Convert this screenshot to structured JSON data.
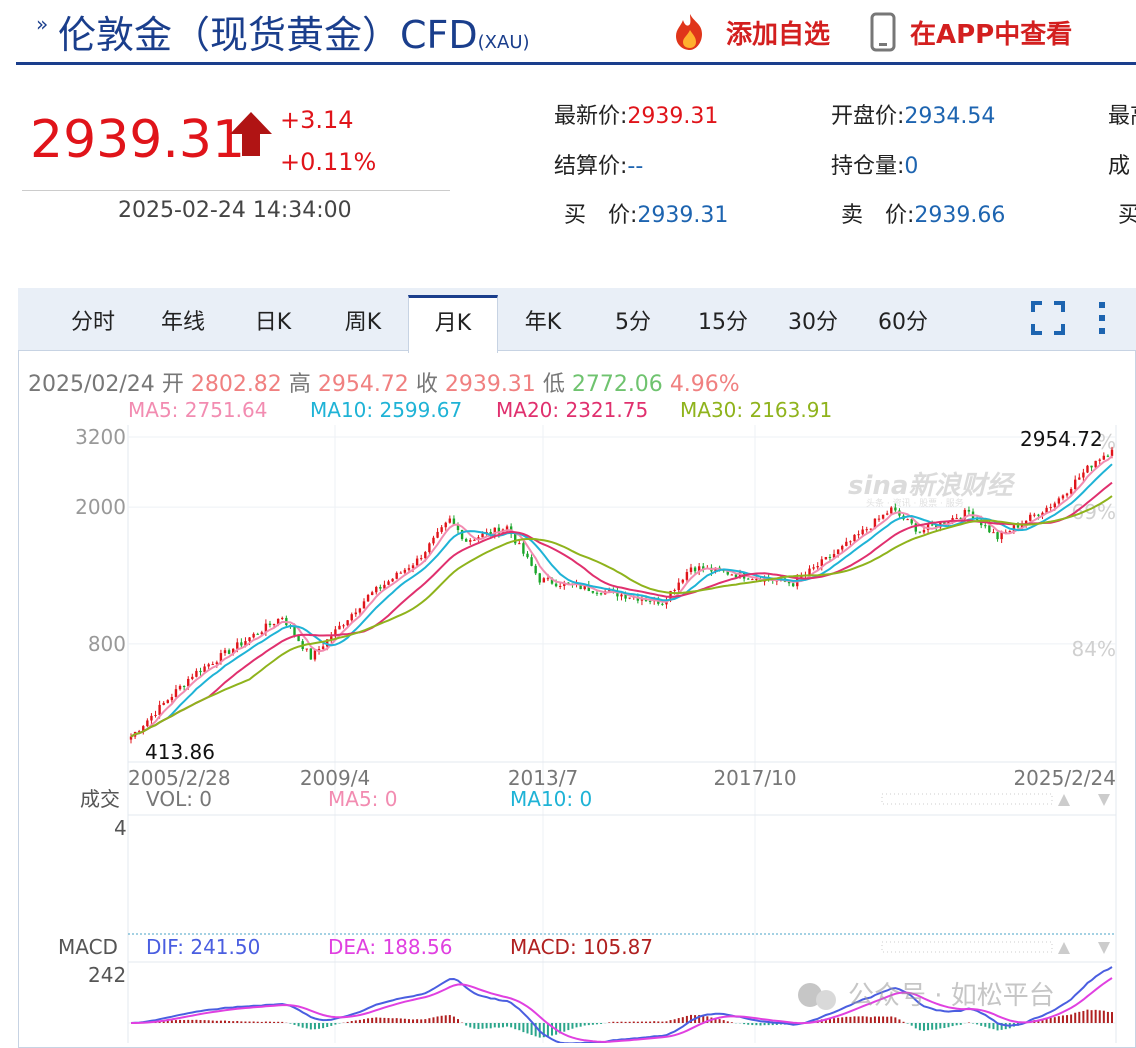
{
  "header": {
    "title": "伦敦金（现货黄金）CFD",
    "title_sub": "(XAU)",
    "add_watch": "添加自选",
    "view_app": "在APP中查看"
  },
  "quote": {
    "price": "2939.31",
    "change": "+3.14",
    "change_pct": "+0.11%",
    "timestamp": "2025-02-24 14:34:00",
    "items": [
      {
        "label": "最新价:",
        "value": "2939.31",
        "up": true
      },
      {
        "label": "开盘价:",
        "value": "2934.54"
      },
      {
        "label": "最高",
        "value": ""
      },
      {
        "label": "结算价:",
        "value": "--"
      },
      {
        "label": "持仓量:",
        "value": "0"
      },
      {
        "label": "成",
        "value": ""
      },
      {
        "label": "买　价:",
        "value": "2939.31"
      },
      {
        "label": "卖　价:",
        "value": "2939.66"
      },
      {
        "label": "买",
        "value": ""
      }
    ]
  },
  "tabs": [
    "分时",
    "年线",
    "日K",
    "周K",
    "月K",
    "年K",
    "5分",
    "15分",
    "30分",
    "60分"
  ],
  "active_tab": 4,
  "kline_info": {
    "date": "2025/02/24",
    "open_label": "开",
    "open": "2802.82",
    "high_label": "高",
    "high": "2954.72",
    "close_label": "收",
    "close": "2939.31",
    "low_label": "低",
    "low": "2772.06",
    "pct": "4.96%"
  },
  "ma_legend": [
    {
      "text": "MA5: 2751.64",
      "color": "#f28cb1"
    },
    {
      "text": "MA10: 2599.67",
      "color": "#1fb3d6"
    },
    {
      "text": "MA20: 2321.75",
      "color": "#e0306e"
    },
    {
      "text": "MA30: 2163.91",
      "color": "#8fb31c"
    }
  ],
  "volume": {
    "label": "成交",
    "vol": "VOL: 0",
    "ma5": "MA5: 0",
    "ma10": "MA10: 0",
    "axis_top": "4"
  },
  "macd": {
    "label": "MACD",
    "dif": "DIF: 241.50",
    "dea": "DEA: 188.56",
    "macd": "MACD: 105.87",
    "axis_top": "242"
  },
  "watermark": {
    "brand": "sina新浪财经",
    "sub": "头条 · 资讯 · 股票 · 服务",
    "wechat": "公众号 · 如松平台"
  },
  "colors": {
    "up": "#e0141a",
    "down": "#1aa62a",
    "ma5": "#f28cb1",
    "ma10": "#1fb3d6",
    "ma20": "#e0306e",
    "ma30": "#8fb31c",
    "dif": "#4a5ee0",
    "dea": "#e040e0"
  },
  "chart_data": {
    "type": "candlestick",
    "title": "伦敦金（现货黄金）CFD 月K",
    "y_ticks": [
      "3200",
      "2000",
      "800"
    ],
    "y_tick_values": [
      3200,
      2000,
      800
    ],
    "y_pct_labels": [
      "%",
      "69%",
      "84%"
    ],
    "x_ticks": [
      "2005/2/28",
      "2009/4",
      "2013/7",
      "2017/10",
      "2025/2/24"
    ],
    "max_label": "2954.72",
    "min_label": "413.86",
    "log_scale": true,
    "series_anchor_close": [
      [
        "2005/2",
        430
      ],
      [
        "2006/5",
        650
      ],
      [
        "2008/3",
        960
      ],
      [
        "2008/10",
        730
      ],
      [
        "2009/12",
        1100
      ],
      [
        "2010/12",
        1400
      ],
      [
        "2011/8",
        1830
      ],
      [
        "2011/12",
        1600
      ],
      [
        "2012/10",
        1750
      ],
      [
        "2013/6",
        1230
      ],
      [
        "2015/12",
        1060
      ],
      [
        "2016/7",
        1340
      ],
      [
        "2018/8",
        1200
      ],
      [
        "2019/8",
        1520
      ],
      [
        "2020/8",
        1970
      ],
      [
        "2021/3",
        1700
      ],
      [
        "2022/3",
        1940
      ],
      [
        "2022/10",
        1630
      ],
      [
        "2023/12",
        2060
      ],
      [
        "2024/10",
        2740
      ],
      [
        "2025/2",
        2939
      ]
    ]
  }
}
